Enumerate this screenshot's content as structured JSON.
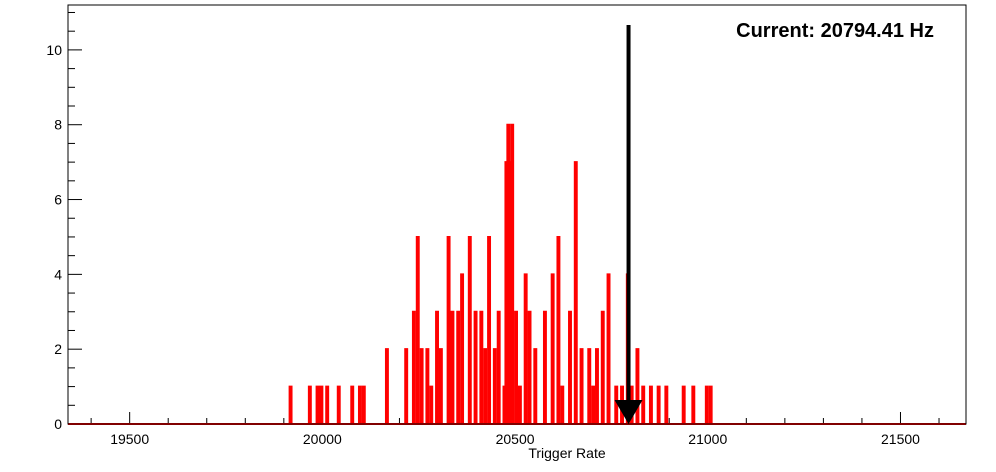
{
  "chart_data": {
    "type": "histogram",
    "xlabel": "Trigger Rate",
    "ylabel": "",
    "xlim": [
      19340,
      21670
    ],
    "ylim": [
      0,
      11.2
    ],
    "x_ticks": [
      19500,
      20000,
      20500,
      21000,
      21500
    ],
    "y_ticks": [
      0,
      2,
      4,
      6,
      8,
      10
    ],
    "bin_width": 5,
    "series": [
      {
        "color": "#ff0000",
        "bins": [
          [
            19915,
            1
          ],
          [
            19965,
            1
          ],
          [
            19985,
            1
          ],
          [
            19995,
            1
          ],
          [
            20010,
            1
          ],
          [
            20040,
            1
          ],
          [
            20075,
            1
          ],
          [
            20095,
            1
          ],
          [
            20105,
            1
          ],
          [
            20165,
            2
          ],
          [
            20215,
            2
          ],
          [
            20235,
            3
          ],
          [
            20245,
            5
          ],
          [
            20255,
            2
          ],
          [
            20270,
            2
          ],
          [
            20280,
            1
          ],
          [
            20295,
            3
          ],
          [
            20305,
            2
          ],
          [
            20325,
            5
          ],
          [
            20335,
            3
          ],
          [
            20350,
            3
          ],
          [
            20360,
            4
          ],
          [
            20380,
            5
          ],
          [
            20395,
            3
          ],
          [
            20410,
            3
          ],
          [
            20420,
            2
          ],
          [
            20430,
            5
          ],
          [
            20445,
            2
          ],
          [
            20455,
            3
          ],
          [
            20470,
            1
          ],
          [
            20475,
            7
          ],
          [
            20480,
            8
          ],
          [
            20485,
            7
          ],
          [
            20490,
            8
          ],
          [
            20500,
            3
          ],
          [
            20510,
            1
          ],
          [
            20525,
            4
          ],
          [
            20535,
            3
          ],
          [
            20550,
            2
          ],
          [
            20575,
            3
          ],
          [
            20595,
            4
          ],
          [
            20610,
            5
          ],
          [
            20620,
            1
          ],
          [
            20640,
            3
          ],
          [
            20655,
            7
          ],
          [
            20670,
            2
          ],
          [
            20690,
            2
          ],
          [
            20700,
            1
          ],
          [
            20710,
            2
          ],
          [
            20725,
            3
          ],
          [
            20740,
            4
          ],
          [
            20760,
            1
          ],
          [
            20775,
            1
          ],
          [
            20790,
            4
          ],
          [
            20800,
            1
          ],
          [
            20815,
            2
          ],
          [
            20830,
            1
          ],
          [
            20850,
            1
          ],
          [
            20870,
            1
          ],
          [
            20890,
            1
          ],
          [
            20935,
            1
          ],
          [
            20960,
            1
          ],
          [
            20995,
            1
          ],
          [
            21005,
            1
          ]
        ]
      }
    ],
    "marker": {
      "x": 20794.41,
      "label": "Current: 20794.41 Hz",
      "color": "#000000"
    }
  },
  "colors": {
    "frame": "#000000",
    "histogram": "#ff0000",
    "arrow": "#000000"
  }
}
